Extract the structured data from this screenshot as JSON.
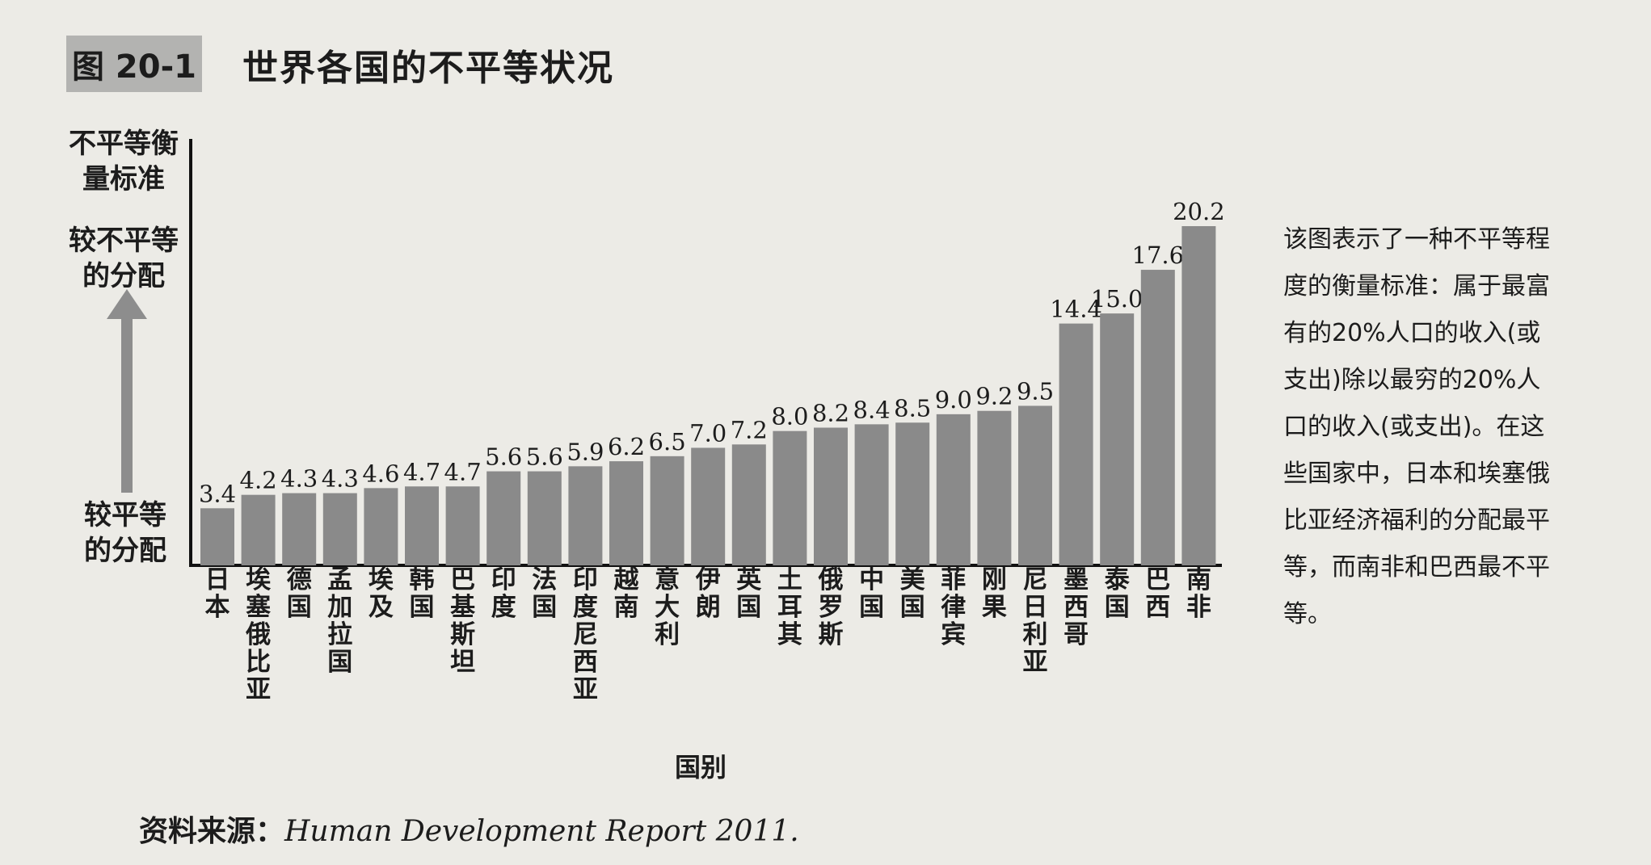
{
  "figure": {
    "number": "图 20-1",
    "title": "世界各国的不平等状况"
  },
  "y_axis": {
    "top_label": "不平等衡量标准",
    "high_label": "较不平等的分配",
    "low_label": "较平等的分配"
  },
  "side_note": "该图表示了一种不平等程度的衡量标准：属于最富有的20%人口的收入(或支出)除以最穷的20%人口的收入(或支出)。在这些国家中，日本和埃塞俄比亚经济福利的分配最平等，而南非和巴西最不平等。",
  "source": {
    "label": "资料来源：",
    "text": "Human Development Report 2011."
  },
  "colors": {
    "bar": "#8a8a8a",
    "axis": "#111111",
    "arrow": "#8d8d8d"
  },
  "chart_data": {
    "type": "bar",
    "xlabel": "国别",
    "ylabel": "不平等衡量标准",
    "categories": [
      "日本",
      "埃塞俄比亚",
      "德国",
      "孟加拉国",
      "埃及",
      "韩国",
      "巴基斯坦",
      "印度",
      "法国",
      "印度尼西亚",
      "越南",
      "意大利",
      "伊朗",
      "英国",
      "土耳其",
      "俄罗斯",
      "中国",
      "美国",
      "菲律宾",
      "刚果",
      "尼日利亚",
      "墨西哥",
      "泰国",
      "巴西",
      "南非"
    ],
    "values": [
      3.4,
      4.2,
      4.3,
      4.3,
      4.6,
      4.7,
      4.7,
      5.6,
      5.6,
      5.9,
      6.2,
      6.5,
      7.0,
      7.2,
      8.0,
      8.2,
      8.4,
      8.5,
      9.0,
      9.2,
      9.5,
      14.4,
      15.0,
      17.6,
      20.2
    ],
    "value_labels": [
      "3.4",
      "4.2",
      "4.3",
      "4.3",
      "4.6",
      "4.7",
      "4.7",
      "5.6",
      "5.6",
      "5.9",
      "6.2",
      "6.5",
      "7.0",
      "7.2",
      "8.0",
      "8.2",
      "8.4",
      "8.5",
      "9.0",
      "9.2",
      "9.5",
      "14.4",
      "15.0",
      "17.6",
      "20.2"
    ],
    "ylim": [
      0,
      20.2
    ],
    "grid": false
  }
}
